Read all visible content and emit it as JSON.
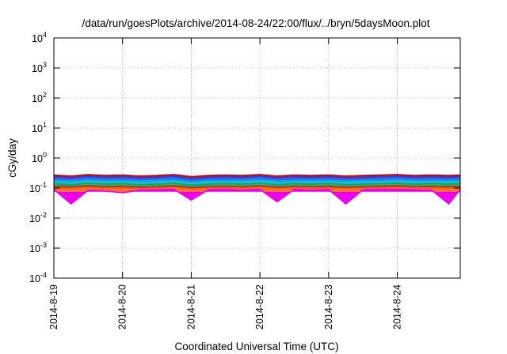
{
  "chart_data": {
    "type": "area",
    "title": "/data/run/goesPlots/archive/2014-08-24/22:00/flux/../bryn/5daysMoon.plot",
    "xlabel": "Coordinated Universal Time (UTC)",
    "ylabel": "cGy/day",
    "y_scale": "log",
    "ylim": [
      0.0001,
      10000
    ],
    "xlim": [
      "2014-08-19T00:00",
      "2014-08-24T22:00"
    ],
    "y_ticks": [
      {
        "base": "10",
        "exp": "-4",
        "value": 0.0001
      },
      {
        "base": "10",
        "exp": "-3",
        "value": 0.001
      },
      {
        "base": "10",
        "exp": "-2",
        "value": 0.01
      },
      {
        "base": "10",
        "exp": "-1",
        "value": 0.1
      },
      {
        "base": "10",
        "exp": "0",
        "value": 1
      },
      {
        "base": "10",
        "exp": "1",
        "value": 10
      },
      {
        "base": "10",
        "exp": "2",
        "value": 100
      },
      {
        "base": "10",
        "exp": "3",
        "value": 1000
      },
      {
        "base": "10",
        "exp": "4",
        "value": 10000
      }
    ],
    "x_ticks": [
      {
        "label": "2014-8-19",
        "value": "2014-08-19T00:00"
      },
      {
        "label": "2014-8-20",
        "value": "2014-08-20T00:00"
      },
      {
        "label": "2014-8-21",
        "value": "2014-08-21T00:00"
      },
      {
        "label": "2014-8-22",
        "value": "2014-08-22T00:00"
      },
      {
        "label": "2014-8-23",
        "value": "2014-08-23T00:00"
      },
      {
        "label": "2014-8-24",
        "value": "2014-08-24T00:00"
      }
    ],
    "grid": true,
    "legend": "none",
    "x": [
      "2014-08-19T00:00",
      "2014-08-19T06:00",
      "2014-08-19T12:00",
      "2014-08-19T18:00",
      "2014-08-20T00:00",
      "2014-08-20T06:00",
      "2014-08-20T12:00",
      "2014-08-20T18:00",
      "2014-08-21T00:00",
      "2014-08-21T06:00",
      "2014-08-21T12:00",
      "2014-08-21T18:00",
      "2014-08-22T00:00",
      "2014-08-22T06:00",
      "2014-08-22T12:00",
      "2014-08-22T18:00",
      "2014-08-23T00:00",
      "2014-08-23T06:00",
      "2014-08-23T12:00",
      "2014-08-23T18:00",
      "2014-08-24T00:00",
      "2014-08-24T06:00",
      "2014-08-24T12:00",
      "2014-08-24T18:00",
      "2014-08-24T22:00"
    ],
    "series": [
      {
        "color": "#cc0000",
        "values": [
          0.27,
          0.25,
          0.28,
          0.26,
          0.27,
          0.25,
          0.26,
          0.28,
          0.24,
          0.26,
          0.27,
          0.26,
          0.28,
          0.25,
          0.27,
          0.26,
          0.27,
          0.25,
          0.26,
          0.27,
          0.28,
          0.26,
          0.27,
          0.26,
          0.27
        ]
      },
      {
        "color": "#2040e0",
        "values": [
          0.24,
          0.22,
          0.25,
          0.23,
          0.24,
          0.22,
          0.23,
          0.25,
          0.21,
          0.23,
          0.24,
          0.23,
          0.25,
          0.22,
          0.24,
          0.23,
          0.24,
          0.22,
          0.23,
          0.24,
          0.25,
          0.23,
          0.24,
          0.23,
          0.24
        ]
      },
      {
        "color": "#00a8e0",
        "values": [
          0.18,
          0.17,
          0.19,
          0.18,
          0.18,
          0.17,
          0.18,
          0.19,
          0.16,
          0.18,
          0.18,
          0.18,
          0.19,
          0.17,
          0.18,
          0.18,
          0.18,
          0.17,
          0.18,
          0.18,
          0.19,
          0.18,
          0.18,
          0.18,
          0.18
        ]
      },
      {
        "color": "#00b050",
        "values": [
          0.14,
          0.13,
          0.145,
          0.135,
          0.14,
          0.13,
          0.135,
          0.145,
          0.125,
          0.135,
          0.14,
          0.135,
          0.145,
          0.13,
          0.14,
          0.135,
          0.14,
          0.13,
          0.135,
          0.14,
          0.145,
          0.135,
          0.14,
          0.135,
          0.14
        ]
      },
      {
        "color": "#b03030",
        "values": [
          0.115,
          0.11,
          0.12,
          0.112,
          0.115,
          0.108,
          0.112,
          0.12,
          0.105,
          0.112,
          0.115,
          0.112,
          0.12,
          0.108,
          0.115,
          0.112,
          0.115,
          0.108,
          0.112,
          0.115,
          0.12,
          0.112,
          0.115,
          0.112,
          0.115
        ]
      },
      {
        "color": "#ff6000",
        "values": [
          0.1,
          0.095,
          0.105,
          0.098,
          0.1,
          0.094,
          0.098,
          0.105,
          0.092,
          0.098,
          0.1,
          0.098,
          0.105,
          0.094,
          0.1,
          0.098,
          0.1,
          0.094,
          0.098,
          0.1,
          0.105,
          0.098,
          0.1,
          0.098,
          0.1
        ]
      },
      {
        "color": "#ee00ee",
        "values": [
          0.09,
          0.03,
          0.085,
          0.08,
          0.07,
          0.085,
          0.088,
          0.09,
          0.04,
          0.088,
          0.09,
          0.085,
          0.09,
          0.035,
          0.09,
          0.085,
          0.09,
          0.03,
          0.088,
          0.09,
          0.09,
          0.088,
          0.085,
          0.03,
          0.09
        ]
      }
    ]
  }
}
